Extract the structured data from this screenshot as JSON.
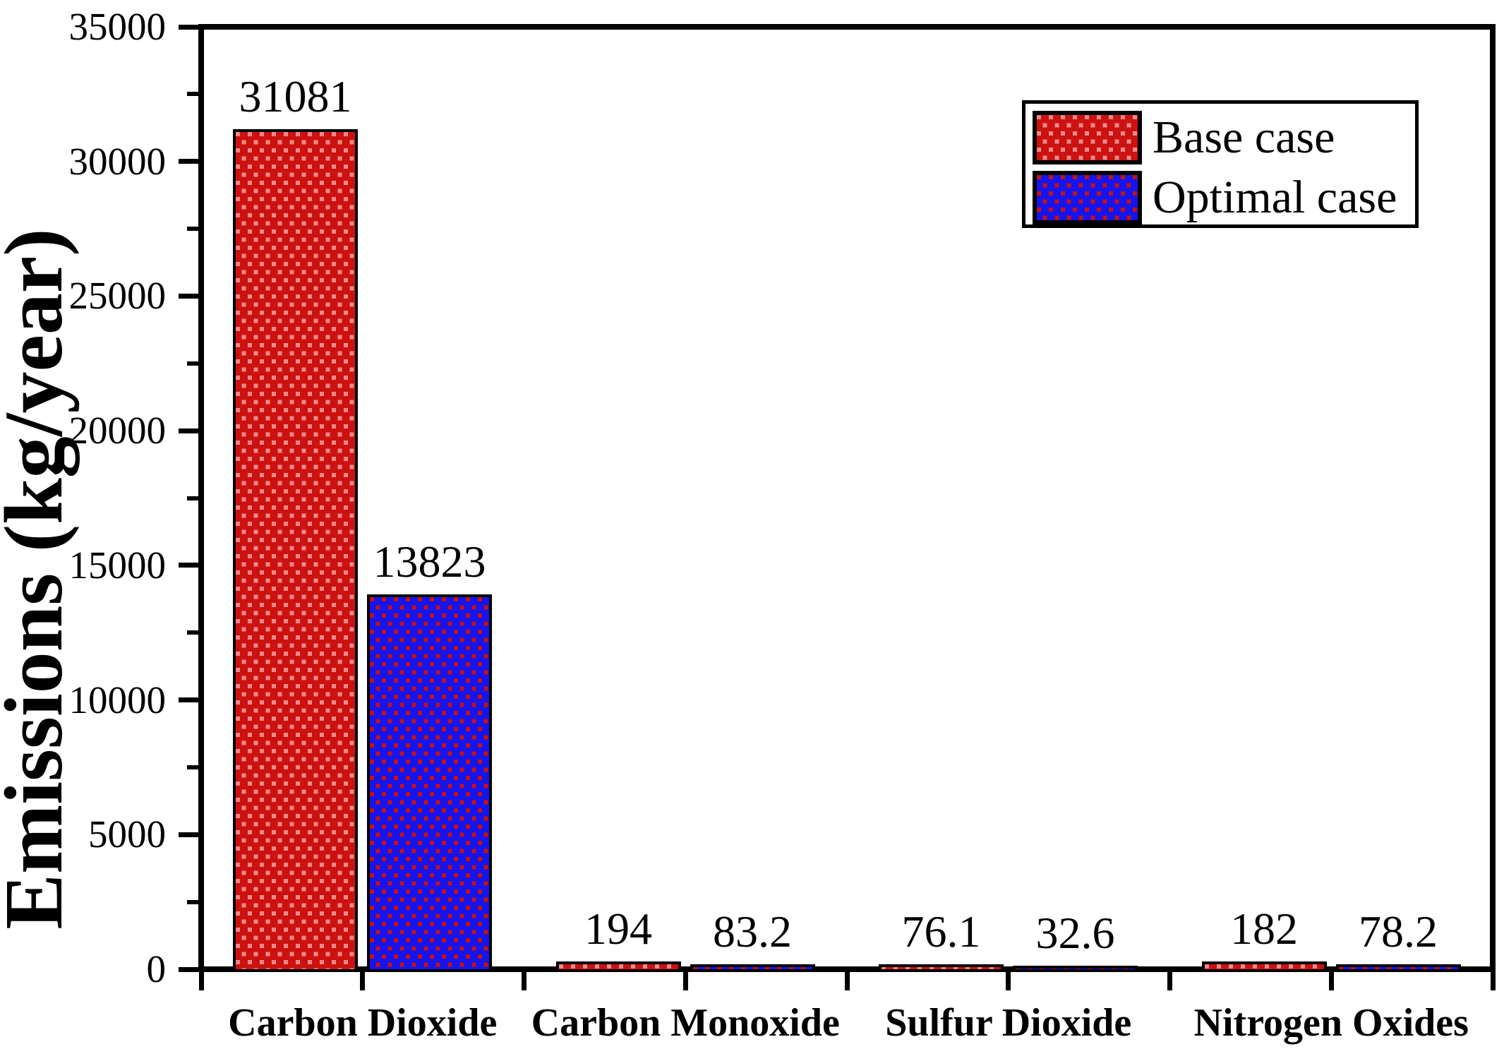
{
  "chart_data": {
    "type": "bar",
    "title": "",
    "xlabel": "",
    "ylabel": "Emissions (kg/year)",
    "ylim": [
      0,
      35000
    ],
    "y_major_step": 5000,
    "y_minor_step": 2500,
    "y_tick_labels": [
      "0",
      "5000",
      "10000",
      "15000",
      "20000",
      "25000",
      "30000",
      "35000"
    ],
    "categories": [
      "Carbon Dioxide",
      "Carbon Monoxide",
      "Sulfur Dioxide",
      "Nitrogen Oxides"
    ],
    "series": [
      {
        "name": "Base case",
        "fill_color": "#cc1111",
        "dot_color": "#ef8989",
        "values": [
          31081,
          194,
          76.1,
          182
        ],
        "value_labels": [
          "31081",
          "194",
          "76.1",
          "182"
        ]
      },
      {
        "name": "Optimal case",
        "fill_color": "#1414ee",
        "dot_color": "#c81010",
        "values": [
          13823,
          83.2,
          32.6,
          78.2
        ],
        "value_labels": [
          "13823",
          "83.2",
          "32.6",
          "78.2"
        ]
      }
    ],
    "grid": false,
    "legend_position": "top-right",
    "bar_border_color": "#000000",
    "axis_color": "#000000"
  },
  "legend": {
    "items": [
      {
        "label": "Base case"
      },
      {
        "label": "Optimal case"
      }
    ]
  }
}
